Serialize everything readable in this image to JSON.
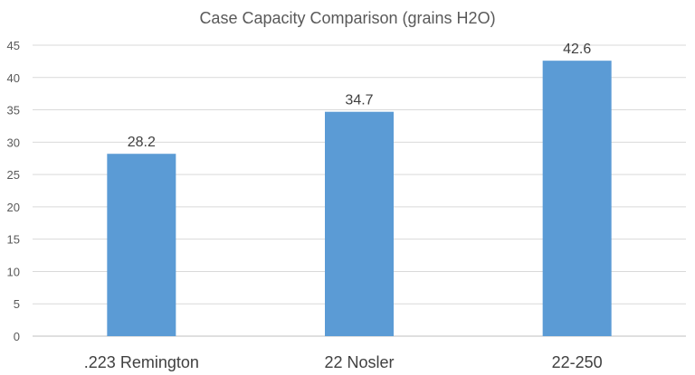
{
  "chart_data": {
    "type": "bar",
    "title": "Case Capacity Comparison (grains H2O)",
    "categories": [
      ".223 Remington",
      "22 Nosler",
      "22-250"
    ],
    "values": [
      28.2,
      34.7,
      42.6
    ],
    "data_labels": [
      "28.2",
      "34.7",
      "42.6"
    ],
    "xlabel": "",
    "ylabel": "",
    "ylim": [
      0,
      45
    ],
    "yticks": [
      0,
      5,
      10,
      15,
      20,
      25,
      30,
      35,
      40,
      45
    ],
    "grid": true,
    "legend": "none",
    "colors": {
      "bar": "#5B9BD5",
      "grid": "#D9D9D9",
      "text": "#595959"
    }
  }
}
